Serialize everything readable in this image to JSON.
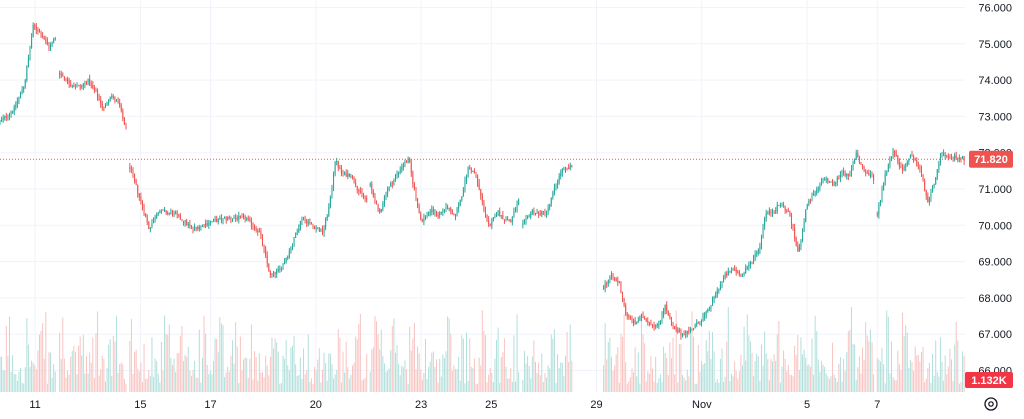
{
  "colors": {
    "up": "#26a69a",
    "down": "#ef5350",
    "up_volume": "#b2dfdb",
    "down_volume": "#f8c4c2",
    "grid": "#f0f3fa",
    "price_line": "#ef5350",
    "badge": "#ef5350",
    "volume_badge": "#f23645"
  },
  "icons": {
    "settings": "gear-icon"
  },
  "chart_data": {
    "type": "candlestick",
    "ylim": [
      65.8,
      76.1
    ],
    "y_ticks": [
      "76.000",
      "75.000",
      "74.000",
      "73.000",
      "72.000",
      "71.000",
      "70.000",
      "69.000",
      "68.000",
      "67.000",
      "66.000"
    ],
    "y_tick_values": [
      76,
      75,
      74,
      73,
      72,
      71,
      70,
      69,
      68,
      67,
      66
    ],
    "x_ticks": [
      "11",
      "15",
      "17",
      "20",
      "23",
      "25",
      "29",
      "Nov",
      "5",
      "7"
    ],
    "x_tick_positions": [
      7,
      13,
      17,
      23,
      29,
      33,
      39,
      45,
      51,
      55
    ],
    "x_range": [
      5,
      60
    ],
    "last_price": 71.82,
    "last_price_label": "71.820",
    "volume_label": "1.132K",
    "grid": true,
    "segments": [
      {
        "start": 5.0,
        "end": 8.2,
        "kp": [
          [
            5.0,
            72.85
          ],
          [
            5.8,
            73.2
          ],
          [
            6.4,
            73.9
          ],
          [
            6.9,
            75.5
          ],
          [
            7.3,
            75.3
          ],
          [
            7.8,
            74.9
          ],
          [
            8.2,
            75.2
          ]
        ]
      },
      {
        "start": 8.4,
        "end": 12.2,
        "kp": [
          [
            8.4,
            74.2
          ],
          [
            9.0,
            73.9
          ],
          [
            9.6,
            73.8
          ],
          [
            10.0,
            74.0
          ],
          [
            10.5,
            73.6
          ],
          [
            10.9,
            73.2
          ],
          [
            11.3,
            73.6
          ],
          [
            11.8,
            73.3
          ],
          [
            12.2,
            72.6
          ]
        ]
      },
      {
        "start": 12.4,
        "end": 25.9,
        "kp": [
          [
            12.4,
            71.6
          ],
          [
            13.0,
            70.7
          ],
          [
            13.5,
            69.9
          ],
          [
            14.0,
            70.4
          ],
          [
            15.0,
            70.3
          ],
          [
            16.0,
            69.9
          ],
          [
            17.0,
            70.1
          ],
          [
            18.0,
            70.2
          ],
          [
            19.0,
            70.2
          ],
          [
            19.8,
            69.8
          ],
          [
            20.4,
            68.6
          ],
          [
            21.0,
            68.8
          ],
          [
            21.6,
            69.4
          ],
          [
            22.2,
            70.2
          ],
          [
            22.8,
            70.0
          ],
          [
            23.4,
            69.8
          ],
          [
            23.8,
            70.6
          ],
          [
            24.1,
            71.8
          ],
          [
            24.5,
            71.4
          ],
          [
            25.0,
            71.4
          ],
          [
            25.5,
            70.9
          ],
          [
            25.9,
            70.7
          ]
        ]
      },
      {
        "start": 26.1,
        "end": 34.6,
        "kp": [
          [
            26.1,
            71.1
          ],
          [
            26.6,
            70.3
          ],
          [
            27.0,
            70.9
          ],
          [
            27.5,
            71.3
          ],
          [
            28.0,
            71.7
          ],
          [
            28.3,
            71.8
          ],
          [
            28.6,
            71.0
          ],
          [
            29.0,
            70.1
          ],
          [
            29.5,
            70.4
          ],
          [
            30.0,
            70.3
          ],
          [
            30.5,
            70.5
          ],
          [
            30.9,
            70.2
          ],
          [
            31.3,
            70.8
          ],
          [
            31.7,
            71.6
          ],
          [
            32.1,
            71.4
          ],
          [
            32.5,
            70.6
          ],
          [
            32.9,
            69.9
          ],
          [
            33.3,
            70.4
          ],
          [
            33.7,
            70.2
          ],
          [
            34.1,
            70.1
          ],
          [
            34.6,
            70.7
          ]
        ]
      },
      {
        "start": 34.8,
        "end": 37.6,
        "kp": [
          [
            34.8,
            70.0
          ],
          [
            35.3,
            70.4
          ],
          [
            35.7,
            70.3
          ],
          [
            36.2,
            70.4
          ],
          [
            36.6,
            71.0
          ],
          [
            37.0,
            71.5
          ],
          [
            37.6,
            71.6
          ]
        ]
      },
      {
        "start": 39.4,
        "end": 54.8,
        "kp": [
          [
            39.4,
            68.3
          ],
          [
            39.8,
            68.6
          ],
          [
            40.3,
            68.4
          ],
          [
            40.7,
            67.5
          ],
          [
            41.2,
            67.3
          ],
          [
            41.6,
            67.5
          ],
          [
            42.1,
            67.3
          ],
          [
            42.5,
            67.2
          ],
          [
            42.9,
            67.8
          ],
          [
            43.3,
            67.2
          ],
          [
            43.8,
            67.0
          ],
          [
            44.3,
            67.1
          ],
          [
            44.8,
            67.3
          ],
          [
            45.3,
            67.6
          ],
          [
            45.8,
            68.1
          ],
          [
            46.3,
            68.6
          ],
          [
            46.8,
            68.8
          ],
          [
            47.3,
            68.6
          ],
          [
            47.8,
            69.0
          ],
          [
            48.3,
            69.4
          ],
          [
            48.6,
            70.3
          ],
          [
            49.1,
            70.4
          ],
          [
            49.5,
            70.6
          ],
          [
            50.0,
            70.3
          ],
          [
            50.5,
            69.2
          ],
          [
            51.0,
            70.6
          ],
          [
            51.5,
            70.9
          ],
          [
            52.0,
            71.3
          ],
          [
            52.5,
            71.1
          ],
          [
            53.0,
            71.5
          ],
          [
            53.4,
            71.3
          ],
          [
            53.8,
            72.0
          ],
          [
            54.2,
            71.5
          ],
          [
            54.8,
            71.3
          ]
        ]
      },
      {
        "start": 55.0,
        "end": 60.0,
        "kp": [
          [
            55.0,
            70.3
          ],
          [
            55.4,
            71.3
          ],
          [
            55.9,
            72.1
          ],
          [
            56.4,
            71.5
          ],
          [
            56.9,
            71.9
          ],
          [
            57.4,
            71.6
          ],
          [
            57.9,
            70.6
          ],
          [
            58.3,
            71.3
          ],
          [
            58.7,
            72.0
          ],
          [
            59.1,
            71.8
          ],
          [
            59.5,
            71.9
          ],
          [
            60.0,
            71.82
          ]
        ]
      }
    ]
  }
}
